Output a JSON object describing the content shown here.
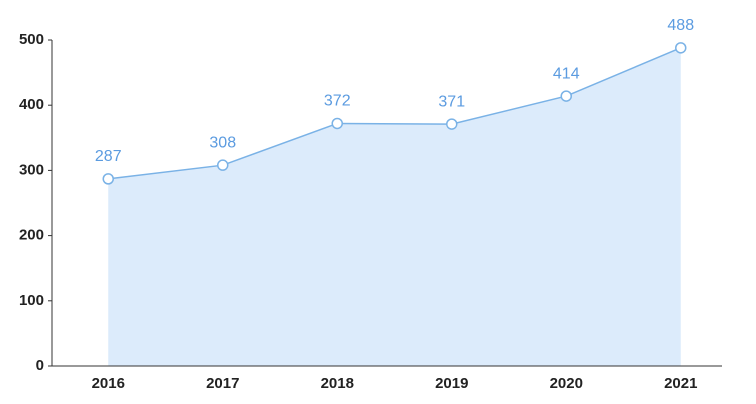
{
  "chart_data": {
    "type": "area",
    "categories": [
      "2016",
      "2017",
      "2018",
      "2019",
      "2020",
      "2021"
    ],
    "values": [
      287,
      308,
      372,
      371,
      414,
      488
    ],
    "color": "#7ab2e6",
    "fill_color": "#dcebfb",
    "label_color": "#5b9be0",
    "ylim": [
      0,
      500
    ],
    "yticks": [
      0,
      100,
      200,
      300,
      400,
      500
    ],
    "grid": false
  }
}
